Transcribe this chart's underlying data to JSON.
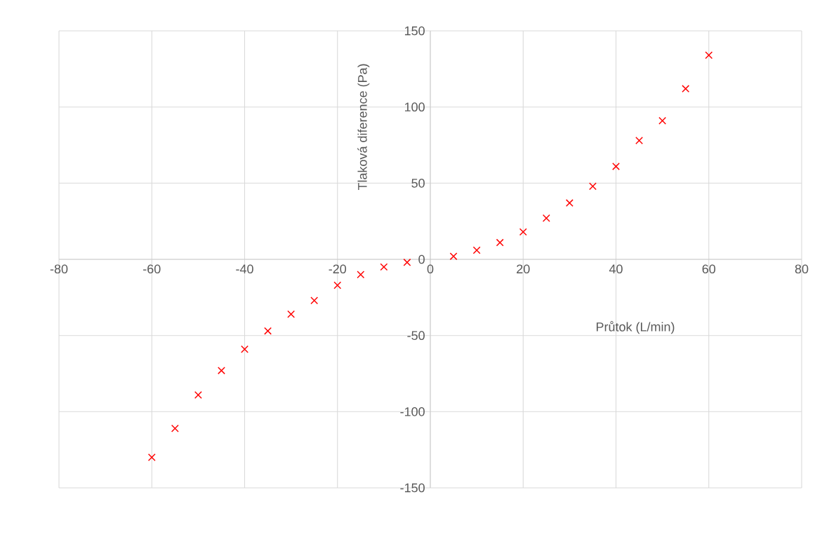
{
  "chart_data": {
    "type": "scatter",
    "xlabel": "Průtok (L/min)",
    "ylabel": "Tlaková diference (Pa)",
    "x": [
      -60,
      -55,
      -50,
      -45,
      -40,
      -35,
      -30,
      -25,
      -20,
      -15,
      -10,
      -5,
      5,
      10,
      15,
      20,
      25,
      30,
      35,
      40,
      45,
      50,
      55,
      60
    ],
    "values": [
      -130,
      -111,
      -89,
      -73,
      -59,
      -47,
      -36,
      -27,
      -17,
      -10,
      -5,
      -2,
      2,
      6,
      11,
      18,
      27,
      37,
      48,
      61,
      78,
      91,
      112,
      134
    ],
    "color": "#ff0000",
    "marker": "cross",
    "grid": true,
    "xlim": [
      -80,
      80
    ],
    "xticks": [
      -80,
      -60,
      -40,
      -20,
      0,
      20,
      40,
      60,
      80
    ],
    "ylim": [
      -150,
      150
    ],
    "yticks": [
      -150,
      -100,
      -50,
      0,
      50,
      100,
      150
    ]
  }
}
